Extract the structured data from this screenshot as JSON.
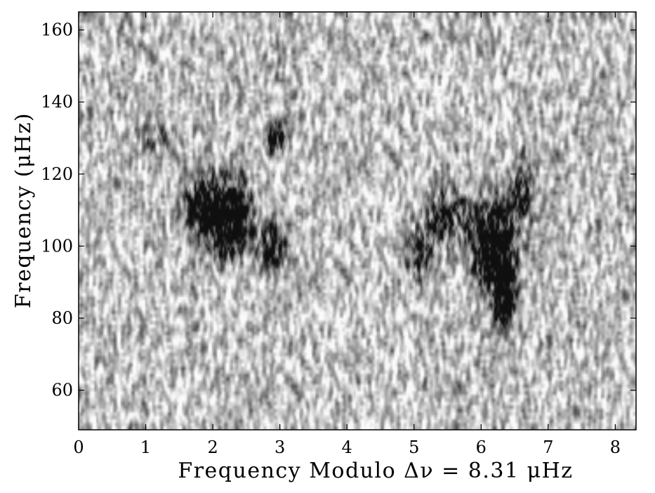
{
  "chart_data": {
    "type": "heatmap",
    "title": "",
    "xlabel": "Frequency Modulo Δν = 8.31 μHz",
    "ylabel": "Frequency (μHz)",
    "xlim": [
      0,
      8.31
    ],
    "ylim": [
      49,
      165
    ],
    "x_ticks": [
      0,
      1,
      2,
      3,
      4,
      5,
      6,
      7,
      8
    ],
    "y_ticks": [
      60,
      80,
      100,
      120,
      140,
      160
    ],
    "colormap": "gray_reversed",
    "grid": false,
    "legend": "none",
    "high_power_regions": [
      {
        "x_center": 2.2,
        "y_center": 108,
        "x_width": 0.35,
        "y_width": 10,
        "strength": 1.0
      },
      {
        "x_center": 2.9,
        "y_center": 100,
        "x_width": 0.2,
        "y_width": 6,
        "strength": 0.7
      },
      {
        "x_center": 2.95,
        "y_center": 130,
        "x_width": 0.15,
        "y_width": 5,
        "strength": 0.6
      },
      {
        "x_center": 1.8,
        "y_center": 112,
        "x_width": 0.25,
        "y_width": 8,
        "strength": 0.5
      },
      {
        "x_center": 6.2,
        "y_center": 100,
        "x_width": 0.3,
        "y_width": 12,
        "strength": 1.0
      },
      {
        "x_center": 6.35,
        "y_center": 85,
        "x_width": 0.15,
        "y_width": 7,
        "strength": 0.85
      },
      {
        "x_center": 5.5,
        "y_center": 108,
        "x_width": 0.3,
        "y_width": 8,
        "strength": 0.6
      },
      {
        "x_center": 5.1,
        "y_center": 98,
        "x_width": 0.2,
        "y_width": 8,
        "strength": 0.45
      },
      {
        "x_center": 6.6,
        "y_center": 115,
        "x_width": 0.2,
        "y_width": 8,
        "strength": 0.5
      },
      {
        "x_center": 1.2,
        "y_center": 130,
        "x_width": 0.3,
        "y_width": 5,
        "strength": 0.3
      }
    ]
  }
}
